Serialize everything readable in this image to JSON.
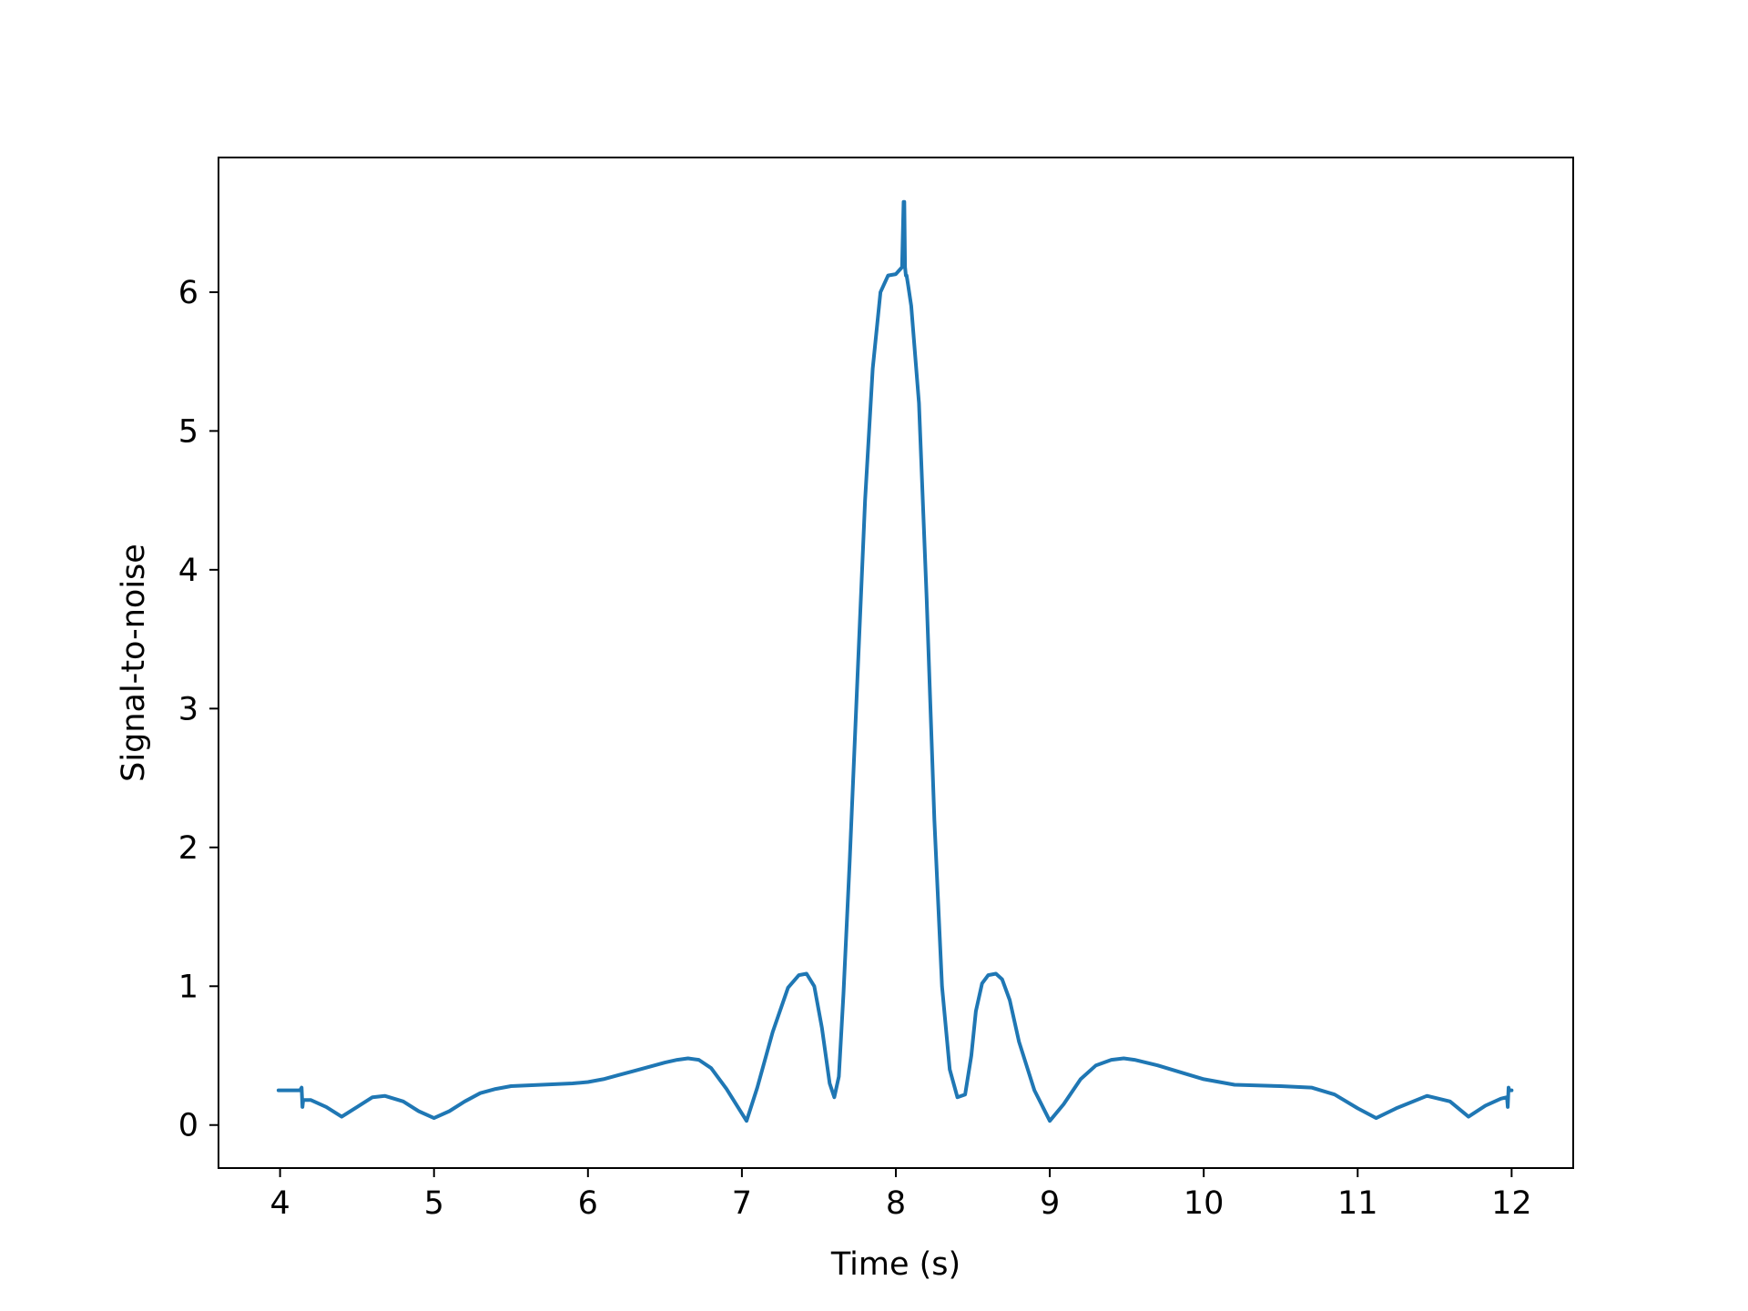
{
  "chart_data": {
    "type": "line",
    "title": "",
    "xlabel": "Time (s)",
    "ylabel": "Signal-to-noise",
    "xlim": [
      3.6,
      12.4
    ],
    "ylim": [
      -0.31,
      6.97
    ],
    "xticks": [
      4,
      5,
      6,
      7,
      8,
      9,
      10,
      11,
      12
    ],
    "yticks": [
      0,
      1,
      2,
      3,
      4,
      5,
      6
    ],
    "grid": false,
    "legend": "none",
    "series": [
      {
        "color": "#1f77b4",
        "x": [
          3.99,
          4.13,
          4.14,
          4.145,
          4.15,
          4.2,
          4.3,
          4.4,
          4.5,
          4.6,
          4.68,
          4.8,
          4.9,
          5.0,
          5.1,
          5.2,
          5.3,
          5.4,
          5.5,
          5.7,
          5.9,
          6.0,
          6.1,
          6.2,
          6.3,
          6.4,
          6.5,
          6.58,
          6.65,
          6.72,
          6.8,
          6.9,
          7.03,
          7.1,
          7.2,
          7.3,
          7.37,
          7.42,
          7.47,
          7.52,
          7.57,
          7.6,
          7.63,
          7.66,
          7.7,
          7.75,
          7.8,
          7.85,
          7.9,
          7.95,
          8.0,
          8.04,
          8.05,
          8.055,
          8.06,
          8.065,
          8.07,
          8.08,
          8.1,
          8.15,
          8.2,
          8.25,
          8.3,
          8.35,
          8.4,
          8.45,
          8.49,
          8.52,
          8.56,
          8.6,
          8.65,
          8.69,
          8.74,
          8.8,
          8.9,
          9.0,
          9.09,
          9.2,
          9.3,
          9.4,
          9.48,
          9.55,
          9.7,
          9.85,
          10.0,
          10.2,
          10.5,
          10.7,
          10.85,
          11.0,
          11.12,
          11.25,
          11.45,
          11.6,
          11.72,
          11.83,
          11.93,
          11.97,
          11.975,
          11.98,
          11.985,
          12.0
        ],
        "y": [
          0.25,
          0.25,
          0.27,
          0.13,
          0.18,
          0.18,
          0.13,
          0.06,
          0.13,
          0.2,
          0.21,
          0.17,
          0.1,
          0.05,
          0.1,
          0.17,
          0.23,
          0.26,
          0.28,
          0.29,
          0.3,
          0.31,
          0.33,
          0.36,
          0.39,
          0.42,
          0.45,
          0.47,
          0.48,
          0.47,
          0.41,
          0.26,
          0.03,
          0.27,
          0.67,
          0.99,
          1.08,
          1.09,
          1.0,
          0.7,
          0.3,
          0.2,
          0.35,
          0.95,
          1.9,
          3.2,
          4.5,
          5.45,
          6.0,
          6.12,
          6.13,
          6.18,
          6.65,
          6.65,
          6.18,
          6.12,
          6.12,
          6.05,
          5.9,
          5.2,
          3.8,
          2.2,
          1.0,
          0.4,
          0.2,
          0.22,
          0.5,
          0.82,
          1.02,
          1.08,
          1.09,
          1.05,
          0.9,
          0.6,
          0.25,
          0.03,
          0.15,
          0.33,
          0.43,
          0.47,
          0.48,
          0.47,
          0.43,
          0.38,
          0.33,
          0.29,
          0.28,
          0.27,
          0.22,
          0.12,
          0.05,
          0.12,
          0.21,
          0.17,
          0.06,
          0.14,
          0.19,
          0.2,
          0.13,
          0.27,
          0.25,
          0.25
        ]
      }
    ]
  }
}
